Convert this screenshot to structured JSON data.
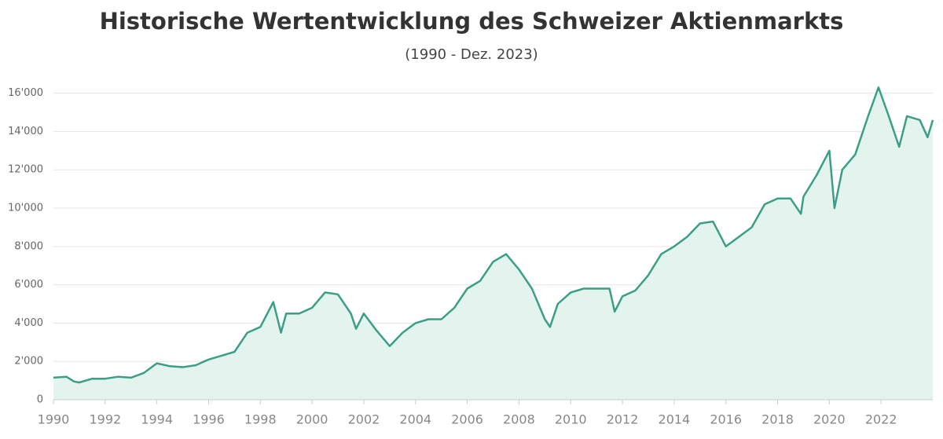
{
  "chart_data": {
    "type": "area",
    "title": "Historische Wertentwicklung des Schweizer Aktienmarkts",
    "subtitle": "(1990 - Dez. 2023)",
    "x": [
      1990,
      1990.5,
      1990.8,
      1991,
      1991.5,
      1992,
      1992.5,
      1993,
      1993.5,
      1994,
      1994.5,
      1995,
      1995.5,
      1996,
      1996.5,
      1997,
      1997.5,
      1998,
      1998.5,
      1998.8,
      1999,
      1999.5,
      2000,
      2000.5,
      2001,
      2001.5,
      2001.7,
      2002,
      2002.5,
      2003,
      2003.5,
      2004,
      2004.5,
      2005,
      2005.5,
      2006,
      2006.5,
      2007,
      2007.5,
      2008,
      2008.5,
      2009,
      2009.2,
      2009.5,
      2010,
      2010.5,
      2011,
      2011.5,
      2011.7,
      2012,
      2012.5,
      2013,
      2013.5,
      2014,
      2014.5,
      2015,
      2015.5,
      2016,
      2016.5,
      2017,
      2017.5,
      2018,
      2018.5,
      2018.9,
      2019,
      2019.5,
      2020,
      2020.2,
      2020.5,
      2021,
      2021.5,
      2021.9,
      2022.3,
      2022.7,
      2023,
      2023.5,
      2023.8,
      2024
    ],
    "series": [
      {
        "name": "Schweizer Aktienmarkt",
        "color": "#3d9e86",
        "fill": "#e3f4ef",
        "values": [
          1150,
          1200,
          950,
          900,
          1100,
          1100,
          1200,
          1150,
          1400,
          1900,
          1750,
          1700,
          1800,
          2100,
          2300,
          2500,
          3500,
          3800,
          5100,
          3500,
          4500,
          4500,
          4800,
          5600,
          5500,
          4500,
          3700,
          4500,
          3600,
          2800,
          3500,
          4000,
          4200,
          4200,
          4800,
          5800,
          6200,
          7200,
          7600,
          6800,
          5800,
          4200,
          3800,
          5000,
          5600,
          5800,
          5800,
          5800,
          4600,
          5400,
          5700,
          6500,
          7600,
          8000,
          8500,
          9200,
          9300,
          8000,
          8500,
          9000,
          10200,
          10500,
          10500,
          9700,
          10600,
          11700,
          13000,
          10000,
          12000,
          12800,
          14800,
          16300,
          14800,
          13200,
          14800,
          14600,
          13700,
          14600
        ]
      }
    ],
    "xlim": [
      1990,
      2024
    ],
    "xticks": [
      1990,
      1992,
      1994,
      1996,
      1998,
      2000,
      2002,
      2004,
      2006,
      2008,
      2010,
      2012,
      2014,
      2016,
      2018,
      2020,
      2022
    ],
    "ylim": [
      0,
      16600
    ],
    "yticks": [
      0,
      {
        "value": 2000,
        "label": "2'000"
      },
      {
        "value": 4000,
        "label": "4'000"
      },
      {
        "value": 6000,
        "label": "6'000"
      },
      {
        "value": 8000,
        "label": "8'000"
      },
      {
        "value": 10000,
        "label": "10'000"
      },
      {
        "value": 12000,
        "label": "12'000"
      },
      {
        "value": 14000,
        "label": "14'000"
      },
      {
        "value": 16000,
        "label": "16'000"
      }
    ],
    "grid": true
  }
}
